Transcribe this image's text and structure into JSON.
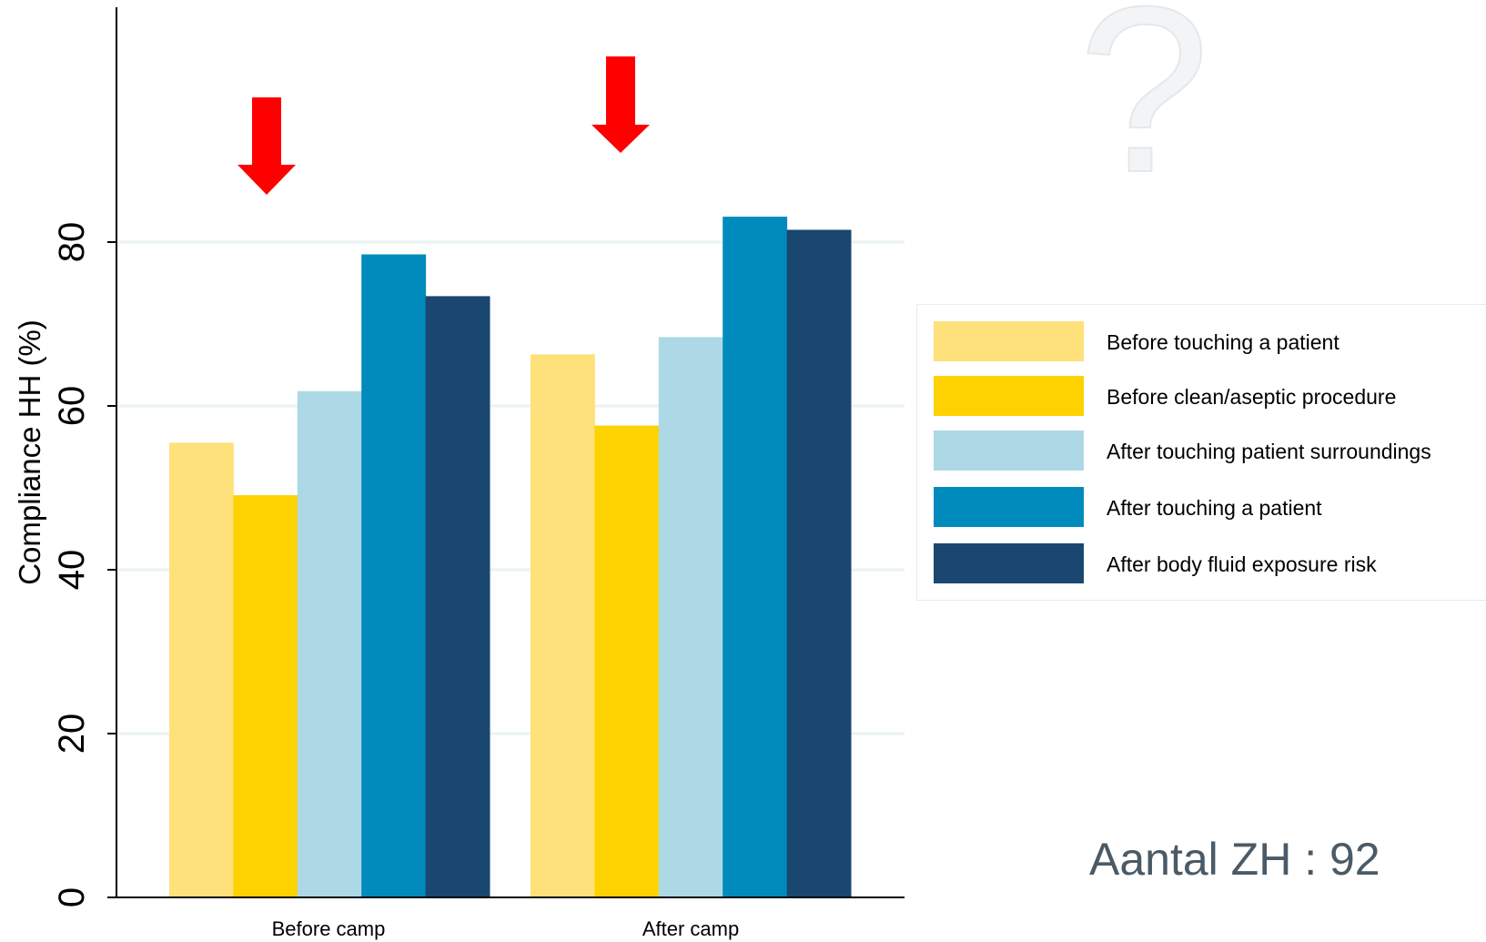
{
  "chart_data": {
    "type": "bar",
    "title": "",
    "xlabel": "",
    "ylabel": "Compliance HH (%)",
    "ylim": [
      0,
      85
    ],
    "yticks": [
      0,
      20,
      40,
      60,
      80
    ],
    "grid": true,
    "legend_position": "right",
    "categories": [
      "Before camp",
      "After camp"
    ],
    "series": [
      {
        "name": "Before touching a patient",
        "color": "#fee17a",
        "values": [
          55.5,
          66.3
        ]
      },
      {
        "name": "Before clean/aseptic procedure",
        "color": "#fdd200",
        "values": [
          49.1,
          57.6
        ]
      },
      {
        "name": "After touching patient surroundings",
        "color": "#add8e6",
        "values": [
          61.8,
          68.4
        ]
      },
      {
        "name": "After touching a patient",
        "color": "#008bbc",
        "values": [
          78.5,
          83.1
        ]
      },
      {
        "name": "After body fluid exposure risk",
        "color": "#1a476f",
        "values": [
          73.4,
          81.5
        ]
      }
    ],
    "annotations": [
      {
        "type": "arrow-down",
        "category": "Before camp",
        "series": "Before clean/aseptic procedure",
        "color": "#ff0000"
      },
      {
        "type": "arrow-down",
        "category": "After camp",
        "series": "Before clean/aseptic procedure",
        "color": "#ff0000"
      }
    ]
  },
  "note": "Aantal ZH : 92",
  "decoration": {
    "question_mark": "?"
  }
}
